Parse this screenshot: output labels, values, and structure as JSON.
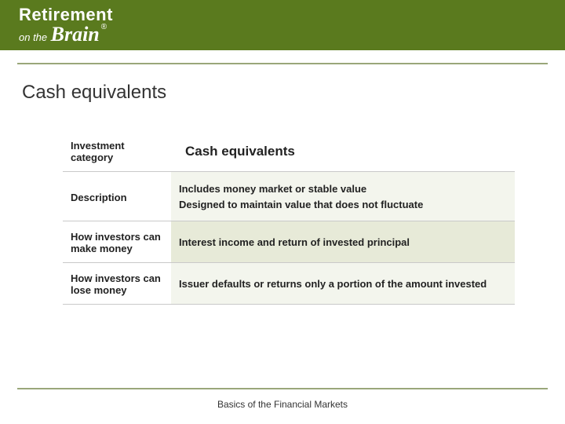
{
  "header": {
    "logo_line1": "Retirement",
    "logo_on": "on the",
    "logo_brain": "Brain",
    "logo_reg": "®"
  },
  "title": "Cash equivalents",
  "table": {
    "rows": [
      {
        "label": "Investment category",
        "value": "Cash equivalents"
      },
      {
        "label": "Description",
        "value": "Includes money market or stable value\nDesigned to maintain value that does not fluctuate"
      },
      {
        "label": "How investors can make money",
        "value": "Interest income and return of invested principal"
      },
      {
        "label": "How investors can lose money",
        "value": "Issuer defaults or returns only a portion of the amount invested"
      }
    ]
  },
  "footer": "Basics of the Financial Markets",
  "colors": {
    "header_bg": "#5a7a1e",
    "rule": "#9aa77a",
    "row_light": "#f3f5ed",
    "row_dark": "#e7ead8",
    "border": "#c9c9c9"
  }
}
